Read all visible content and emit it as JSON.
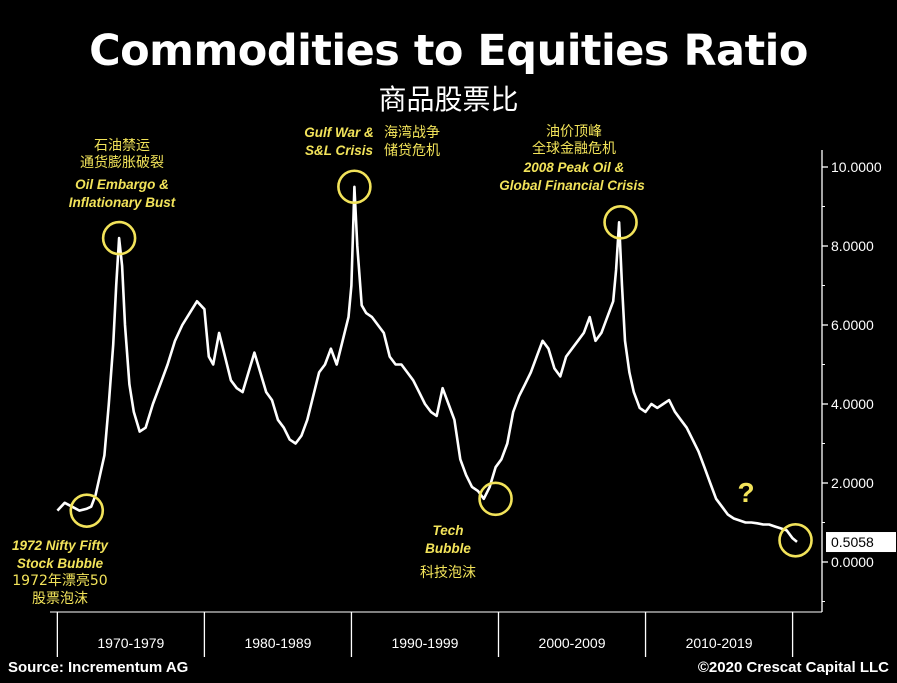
{
  "header": {
    "title": "Commodities to Equities Ratio",
    "subtitle": "商品股票比"
  },
  "footer": {
    "source": "Source: Incrementum AG",
    "copyright": "©2020 Crescat Capital LLC"
  },
  "colors": {
    "background": "#000000",
    "line": "#ffffff",
    "annotation": "#f2e35a",
    "axis": "#ffffff"
  },
  "annotations": [
    {
      "id": "nifty",
      "lines_en": [
        "1972 Nifty Fifty",
        "Stock Bubble"
      ],
      "lines_cn": [
        "1972年漂亮50",
        "股票泡沫"
      ],
      "year": 1972.0,
      "value": 1.3
    },
    {
      "id": "oil",
      "lines_cn": [
        "石油禁运",
        "通货膨胀破裂"
      ],
      "lines_en": [
        "Oil Embargo &",
        "Inflationary Bust"
      ],
      "year": 1974.2,
      "value": 8.2
    },
    {
      "id": "gulf",
      "lines_en": [
        "Gulf War &",
        "S&L Crisis"
      ],
      "lines_cn": [
        "海湾战争",
        "储贷危机"
      ],
      "year": 1990.2,
      "value": 9.5
    },
    {
      "id": "tech",
      "lines_en": [
        "Tech",
        "Bubble"
      ],
      "lines_cn": [
        "科技泡沫"
      ],
      "year": 1999.8,
      "value": 1.6
    },
    {
      "id": "peak",
      "lines_cn": [
        "油价顶峰",
        "全球金融危机"
      ],
      "lines_en": [
        "2008 Peak Oil &",
        "Global Financial Crisis"
      ],
      "year": 2008.3,
      "value": 8.6
    },
    {
      "id": "now",
      "lines_en": [
        "?"
      ],
      "lines_cn": [],
      "year": 2020.2,
      "value": 0.55
    }
  ],
  "chart_data": {
    "type": "line",
    "title": "Commodities to Equities Ratio",
    "subtitle": "商品股票比",
    "xlabel": "",
    "ylabel": "",
    "ylim": [
      0,
      10
    ],
    "yticks": [
      "10.0000",
      "8.0000",
      "6.0000",
      "4.0000",
      "2.0000",
      "0.0000"
    ],
    "ytick_values": [
      10,
      8,
      6,
      4,
      2,
      0
    ],
    "last_value_label": "0.5058",
    "last_value": 0.5058,
    "x_periods": [
      "1970-1979",
      "1980-1989",
      "1990-1999",
      "2000-2009",
      "2010-2019"
    ],
    "grid": false,
    "series": [
      {
        "x": [
          1970.0,
          1970.5,
          1971.0,
          1971.5,
          1972.0,
          1972.3,
          1972.6,
          1972.9,
          1973.2,
          1973.5,
          1973.8,
          1974.0,
          1974.2,
          1974.4,
          1974.6,
          1974.9,
          1975.2,
          1975.6,
          1976.0,
          1976.5,
          1977.0,
          1977.5,
          1978.0,
          1978.5,
          1979.0,
          1979.5,
          1980.0,
          1980.3,
          1980.6,
          1981.0,
          1981.4,
          1981.8,
          1982.2,
          1982.6,
          1983.0,
          1983.4,
          1983.8,
          1984.2,
          1984.6,
          1985.0,
          1985.4,
          1985.8,
          1986.2,
          1986.6,
          1987.0,
          1987.4,
          1987.8,
          1988.2,
          1988.6,
          1989.0,
          1989.4,
          1989.8,
          1990.0,
          1990.2,
          1990.4,
          1990.7,
          1991.0,
          1991.4,
          1991.8,
          1992.2,
          1992.6,
          1993.0,
          1993.4,
          1993.8,
          1994.2,
          1994.6,
          1995.0,
          1995.4,
          1995.8,
          1996.2,
          1996.6,
          1997.0,
          1997.4,
          1997.8,
          1998.2,
          1998.6,
          1999.0,
          1999.4,
          1999.8,
          2000.2,
          2000.6,
          2001.0,
          2001.4,
          2001.8,
          2002.2,
          2002.6,
          2003.0,
          2003.4,
          2003.8,
          2004.2,
          2004.6,
          2005.0,
          2005.4,
          2005.8,
          2006.2,
          2006.6,
          2007.0,
          2007.4,
          2007.8,
          2008.0,
          2008.2,
          2008.4,
          2008.6,
          2008.9,
          2009.2,
          2009.6,
          2010.0,
          2010.4,
          2010.8,
          2011.2,
          2011.6,
          2012.0,
          2012.4,
          2012.8,
          2013.2,
          2013.6,
          2014.0,
          2014.4,
          2014.8,
          2015.2,
          2015.6,
          2016.0,
          2016.4,
          2016.8,
          2017.2,
          2017.6,
          2018.0,
          2018.4,
          2018.8,
          2019.2,
          2019.6,
          2020.0,
          2020.3
        ],
        "values": [
          1.3,
          1.5,
          1.4,
          1.3,
          1.35,
          1.4,
          1.7,
          2.2,
          2.7,
          4.0,
          5.5,
          7.0,
          8.2,
          7.5,
          6.0,
          4.5,
          3.8,
          3.3,
          3.4,
          4.0,
          4.5,
          5.0,
          5.6,
          6.0,
          6.3,
          6.6,
          6.4,
          5.2,
          5.0,
          5.8,
          5.2,
          4.6,
          4.4,
          4.3,
          4.8,
          5.3,
          4.8,
          4.3,
          4.1,
          3.6,
          3.4,
          3.1,
          3.0,
          3.2,
          3.6,
          4.2,
          4.8,
          5.0,
          5.4,
          5.0,
          5.6,
          6.2,
          7.0,
          9.5,
          8.0,
          6.5,
          6.3,
          6.2,
          6.0,
          5.8,
          5.2,
          5.0,
          5.0,
          4.8,
          4.6,
          4.3,
          4.0,
          3.8,
          3.7,
          4.4,
          4.0,
          3.6,
          2.6,
          2.2,
          1.9,
          1.8,
          1.6,
          1.9,
          2.4,
          2.6,
          3.0,
          3.8,
          4.2,
          4.5,
          4.8,
          5.2,
          5.6,
          5.4,
          4.9,
          4.7,
          5.2,
          5.4,
          5.6,
          5.8,
          6.2,
          5.6,
          5.8,
          6.2,
          6.6,
          7.4,
          8.6,
          7.0,
          5.6,
          4.8,
          4.3,
          3.9,
          3.8,
          4.0,
          3.9,
          4.0,
          4.1,
          3.8,
          3.6,
          3.4,
          3.1,
          2.8,
          2.4,
          2.0,
          1.6,
          1.4,
          1.2,
          1.1,
          1.05,
          1.0,
          1.0,
          0.98,
          0.95,
          0.95,
          0.9,
          0.85,
          0.8,
          0.6,
          0.51
        ]
      }
    ]
  }
}
